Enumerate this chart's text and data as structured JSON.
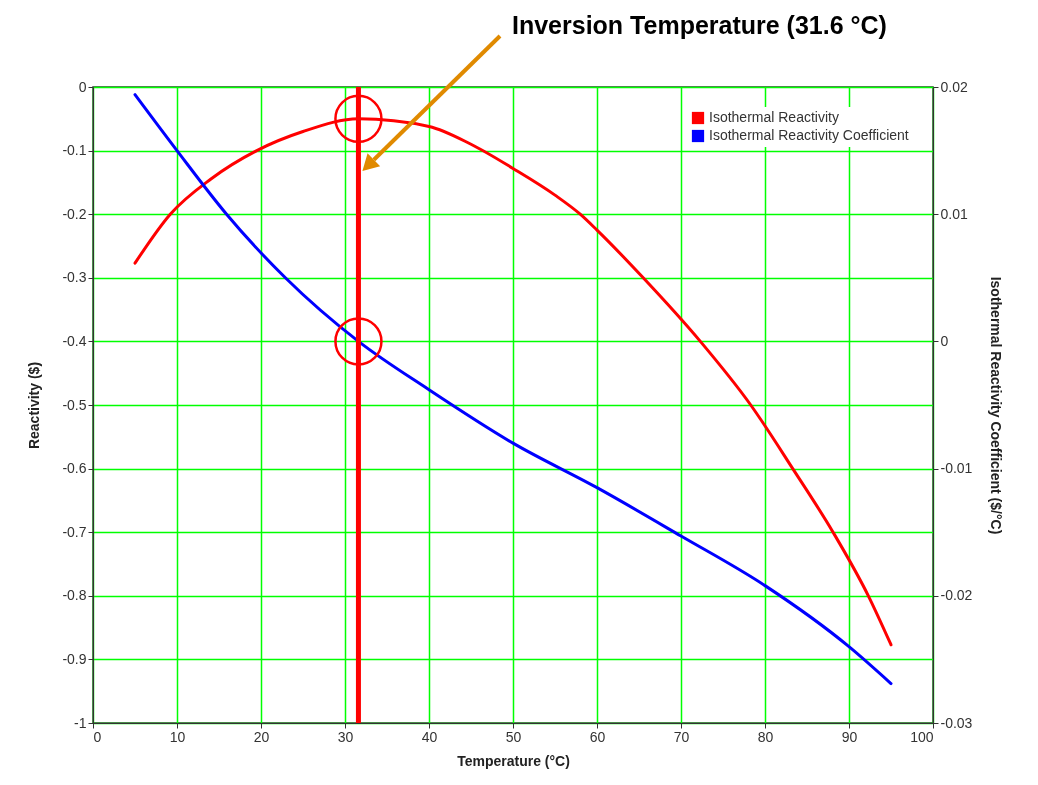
{
  "chart_data": {
    "type": "line",
    "xlabel": "Temperature (°C)",
    "ylabel": "Reactivity ($)",
    "y2label": "Isothermal Reactivity Coefficient ($/°C)",
    "annotations": [
      "Inversion Temperature (31.6 °C)"
    ],
    "series": [
      {
        "name": "Isothermal Reactivity",
        "color": "#ff0000",
        "x": [
          5,
          9.2,
          14,
          19.5,
          25,
          31.6,
          40,
          45,
          50,
          55,
          58,
          60,
          65.5,
          72.3,
          78.3,
          83.3,
          88.1,
          92.3,
          95
        ],
        "values": [
          -0.277,
          -0.2,
          -0.145,
          -0.1,
          -0.07,
          -0.05,
          -0.062,
          -0.09,
          -0.128,
          -0.17,
          -0.2,
          -0.225,
          -0.3,
          -0.4,
          -0.5,
          -0.6,
          -0.7,
          -0.8,
          -0.877
        ]
      },
      {
        "name": "Isothermal Reactivity Coefficient",
        "color": "#0000ff",
        "axis": "y2",
        "x": [
          5,
          10,
          15.9,
          22.9,
          31.6,
          40,
          50,
          60,
          70,
          80,
          90,
          95
        ],
        "values": [
          0.0194,
          0.015,
          0.01,
          0.005,
          0,
          -0.0038,
          -0.008,
          -0.0115,
          -0.0153,
          -0.0192,
          -0.024,
          -0.0269
        ]
      }
    ],
    "xlim": [
      0,
      100
    ],
    "xticks": [
      0,
      10,
      20,
      30,
      40,
      50,
      60,
      70,
      80,
      90,
      100
    ],
    "ylim": [
      -1,
      0
    ],
    "yticks": [
      -1,
      -0.9,
      -0.8,
      -0.7,
      -0.6,
      -0.5,
      -0.4,
      -0.3,
      -0.2,
      -0.1,
      0
    ],
    "y2lim": [
      -0.03,
      0.02
    ],
    "y2ticks": [
      -0.03,
      -0.02,
      -0.01,
      0,
      0.01,
      0.02
    ],
    "ref_lines": [
      {
        "axis": "x",
        "value": 31.6,
        "color": "#ff0000"
      }
    ],
    "grid": true,
    "legend": "top right"
  }
}
